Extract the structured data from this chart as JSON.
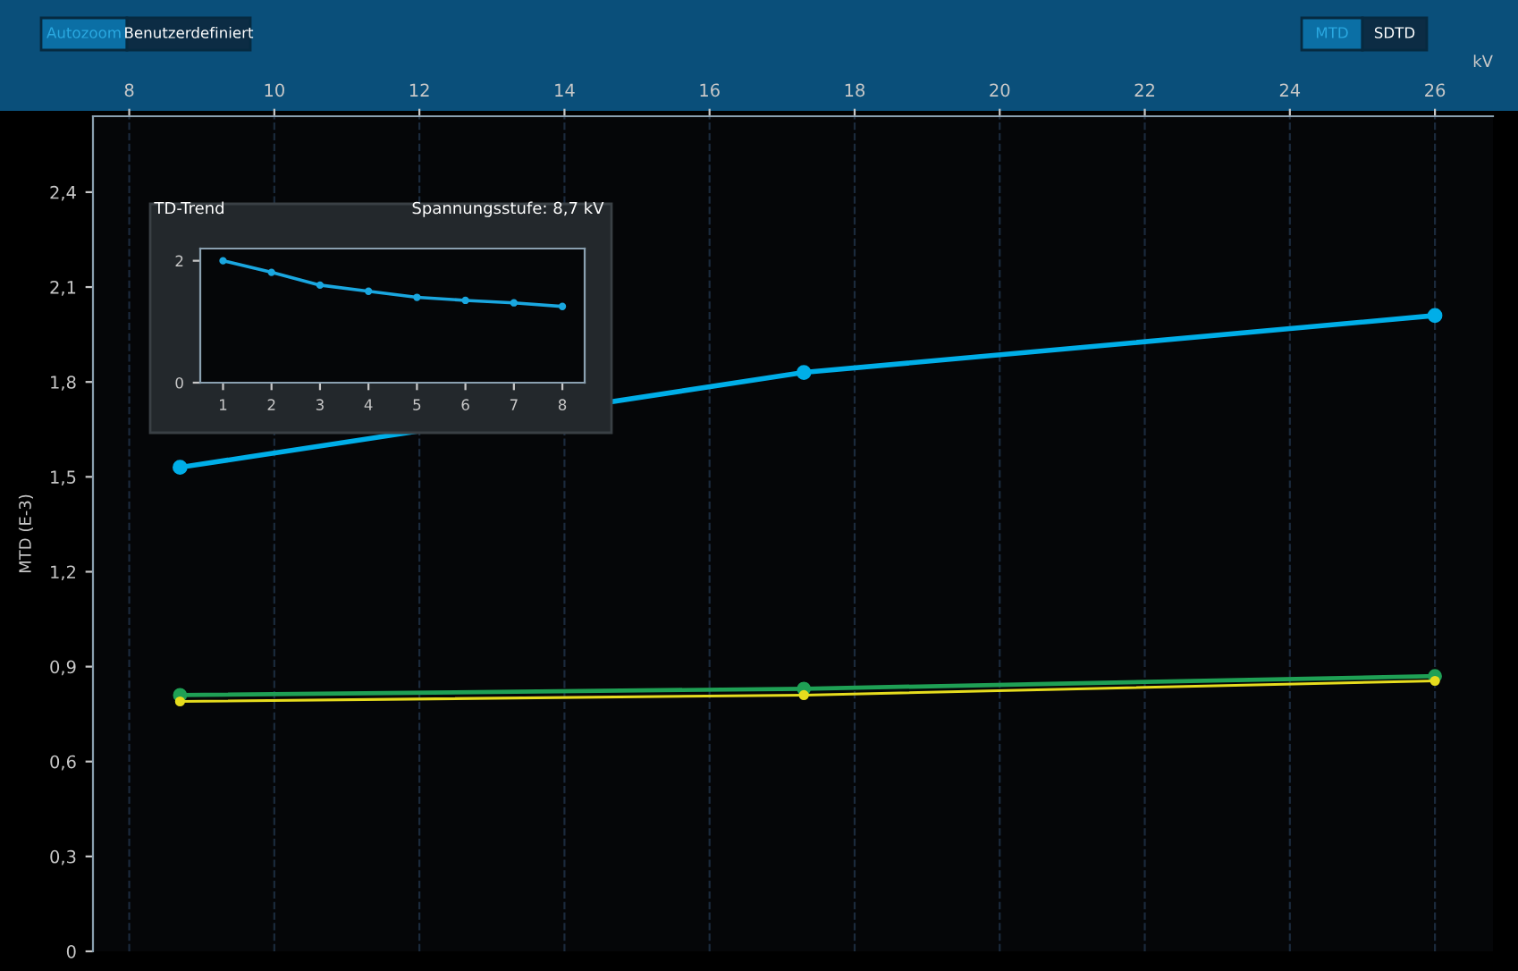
{
  "chart_data": [
    {
      "type": "line",
      "xlabel": "kV",
      "ylabel": "MTD (E-3)",
      "annotations": [
        "Autozoom",
        "Benutzerdefiniert",
        "MTD",
        "SDTD"
      ],
      "x": [
        8.7,
        17.3,
        26
      ],
      "series": [
        {
          "color": "#00aee8",
          "values": [
            1.53,
            1.83,
            2.01
          ]
        },
        {
          "color": "#1fa055",
          "values": [
            0.81,
            0.83,
            0.87
          ]
        },
        {
          "color": "#e6dc1e",
          "values": [
            0.79,
            0.81,
            0.855
          ]
        }
      ],
      "xlim": [
        7.5,
        26.8
      ],
      "ylim": [
        0,
        2.64
      ],
      "xticks": [
        8,
        10,
        12,
        14,
        16,
        18,
        20,
        22,
        24,
        26
      ],
      "yticks": [
        0,
        {
          "value": 0.3,
          "label": "0,3"
        },
        {
          "value": 0.6,
          "label": "0,6"
        },
        {
          "value": 0.9,
          "label": "0,9"
        },
        {
          "value": 1.2,
          "label": "1,2"
        },
        {
          "value": 1.5,
          "label": "1,5"
        },
        {
          "value": 1.8,
          "label": "1,8"
        },
        {
          "value": 2.1,
          "label": "2,1"
        },
        {
          "value": 2.4,
          "label": "2,4"
        }
      ],
      "grid": "x",
      "marker": "circle",
      "line_style": "solid",
      "legend": false
    },
    {
      "type": "line",
      "title": "TD-Trend",
      "subtitle": "Spannungsstufe: 8,7 kV",
      "x": [
        1,
        2,
        3,
        4,
        5,
        6,
        7,
        8
      ],
      "series": [
        {
          "color": "#1aa7e0",
          "values": [
            2.0,
            1.81,
            1.6,
            1.5,
            1.4,
            1.35,
            1.31,
            1.25
          ]
        }
      ],
      "xlim": [
        0.53,
        8.46
      ],
      "ylim": [
        0,
        2.2
      ],
      "xticks": [
        1,
        2,
        3,
        4,
        5,
        6,
        7,
        8
      ],
      "yticks": [
        0,
        2
      ],
      "grid": false,
      "marker": "circle",
      "line_style": "solid",
      "legend": false
    }
  ]
}
